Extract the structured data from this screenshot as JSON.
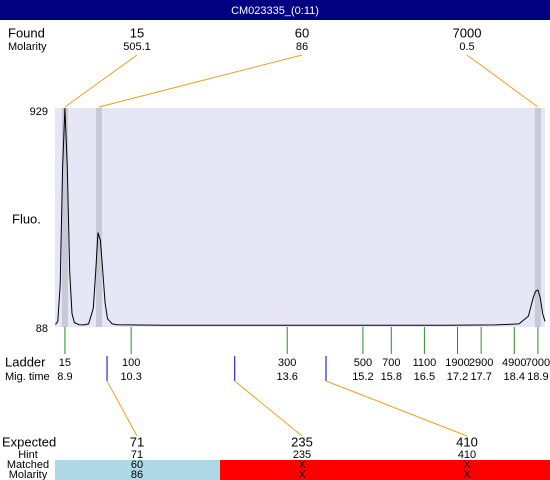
{
  "window_title": "CM023335_(0:11)",
  "chart_data": {
    "type": "line",
    "ylabel": "Fluo.",
    "ylim": [
      88,
      929
    ],
    "yticks": [
      88,
      929
    ],
    "xlim": [
      8.69,
      19.05
    ],
    "x": [
      8.7,
      8.75,
      8.8,
      8.85,
      8.9,
      8.95,
      9.0,
      9.05,
      9.1,
      9.2,
      9.3,
      9.4,
      9.5,
      9.55,
      9.6,
      9.65,
      9.7,
      9.75,
      9.8,
      9.9,
      10.0,
      10.2,
      11,
      12,
      13,
      14,
      15,
      16,
      17,
      18,
      18.5,
      18.7,
      18.8,
      18.85,
      18.9,
      18.95,
      19.0,
      19.05
    ],
    "values": [
      98,
      110,
      250,
      700,
      929,
      700,
      300,
      140,
      105,
      97,
      96,
      100,
      160,
      300,
      450,
      420,
      300,
      180,
      120,
      100,
      97,
      96,
      95,
      95,
      95,
      95,
      95,
      95,
      95,
      96,
      100,
      130,
      200,
      225,
      230,
      200,
      140,
      110
    ],
    "color": "#000000",
    "background": "#e6e6f6",
    "found": {
      "label": "Found",
      "molarity_label": "Molarity",
      "sizes": [
        15,
        60,
        7000
      ],
      "molarity": [
        505.1,
        86,
        0.5
      ],
      "x": [
        8.9,
        9.62,
        18.9
      ]
    },
    "ladder": {
      "label": "Ladder",
      "time_label": "Mig. time",
      "sizes": [
        15,
        100,
        300,
        500,
        700,
        1100,
        1900,
        2900,
        4900,
        7000
      ],
      "x": [
        8.9,
        10.3,
        13.6,
        15.2,
        15.8,
        16.5,
        17.2,
        17.7,
        18.4,
        18.9
      ]
    },
    "expected": {
      "label": "Expected",
      "hint_label": "Hint",
      "matched_label": "Matched",
      "molarity_label": "Molarity",
      "sizes": [
        71,
        235,
        410
      ],
      "hint": [
        71,
        235,
        410
      ],
      "matched": [
        60,
        "X",
        "X"
      ],
      "molarity": [
        86,
        "X",
        "X"
      ],
      "x": [
        9.79,
        12.49,
        14.42
      ],
      "status_colors": [
        "#add8e6",
        "#ff0000",
        "#ff0000"
      ]
    }
  }
}
